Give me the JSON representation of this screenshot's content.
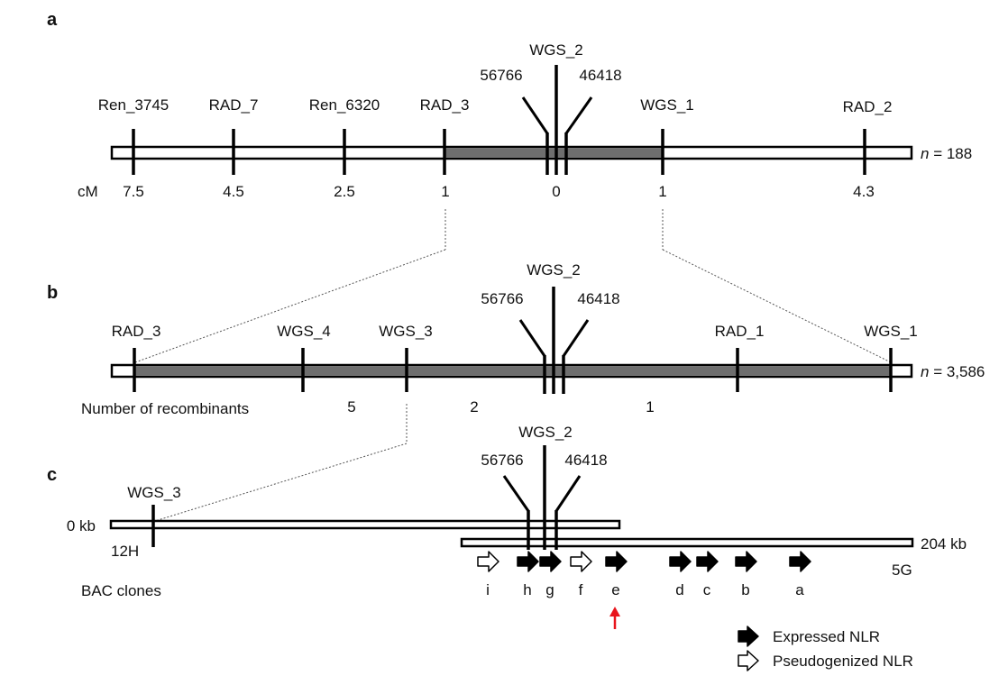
{
  "panels": {
    "a": "a",
    "b": "b",
    "c": "c"
  },
  "colors": {
    "shaded": "#6e6e6e",
    "line": "#000000",
    "arrow_highlight": "#e8141c"
  },
  "panel_a": {
    "markers": [
      "Ren_3745",
      "RAD_7",
      "Ren_6320",
      "RAD_3",
      "56766",
      "WGS_2",
      "46418",
      "WGS_1",
      "RAD_2"
    ],
    "unit_label": "cM",
    "distances": [
      "7.5",
      "4.5",
      "2.5",
      "1",
      "0",
      "1",
      "4.3"
    ],
    "n_italic": "n",
    "n_value": " = 188"
  },
  "panel_b": {
    "markers": [
      "RAD_3",
      "WGS_4",
      "WGS_3",
      "56766",
      "WGS_2",
      "46418",
      "RAD_1",
      "WGS_1"
    ],
    "row_label": "Number of recombinants",
    "recombinants": [
      "5",
      "2",
      "1"
    ],
    "n_italic": "n",
    "n_value": " = 3,586"
  },
  "panel_c": {
    "markers": [
      "WGS_3",
      "56766",
      "WGS_2",
      "46418"
    ],
    "start_label": "0 kb",
    "end_label": "204 kb",
    "clone_12H": "12H",
    "clone_5G": "5G",
    "bac_label": "BAC clones",
    "genes": [
      {
        "label": "i",
        "expressed": false
      },
      {
        "label": "h",
        "expressed": true
      },
      {
        "label": "g",
        "expressed": true
      },
      {
        "label": "f",
        "expressed": false
      },
      {
        "label": "e",
        "expressed": true
      },
      {
        "label": "d",
        "expressed": true
      },
      {
        "label": "c",
        "expressed": true
      },
      {
        "label": "b",
        "expressed": true
      },
      {
        "label": "a",
        "expressed": true
      }
    ]
  },
  "legend": {
    "expressed": "Expressed NLR",
    "pseudogenized": "Pseudogenized NLR"
  },
  "icons": {
    "expressed": "filled-arrow-icon",
    "pseudogenized": "hollow-arrow-icon",
    "highlight": "red-up-arrow-icon"
  }
}
